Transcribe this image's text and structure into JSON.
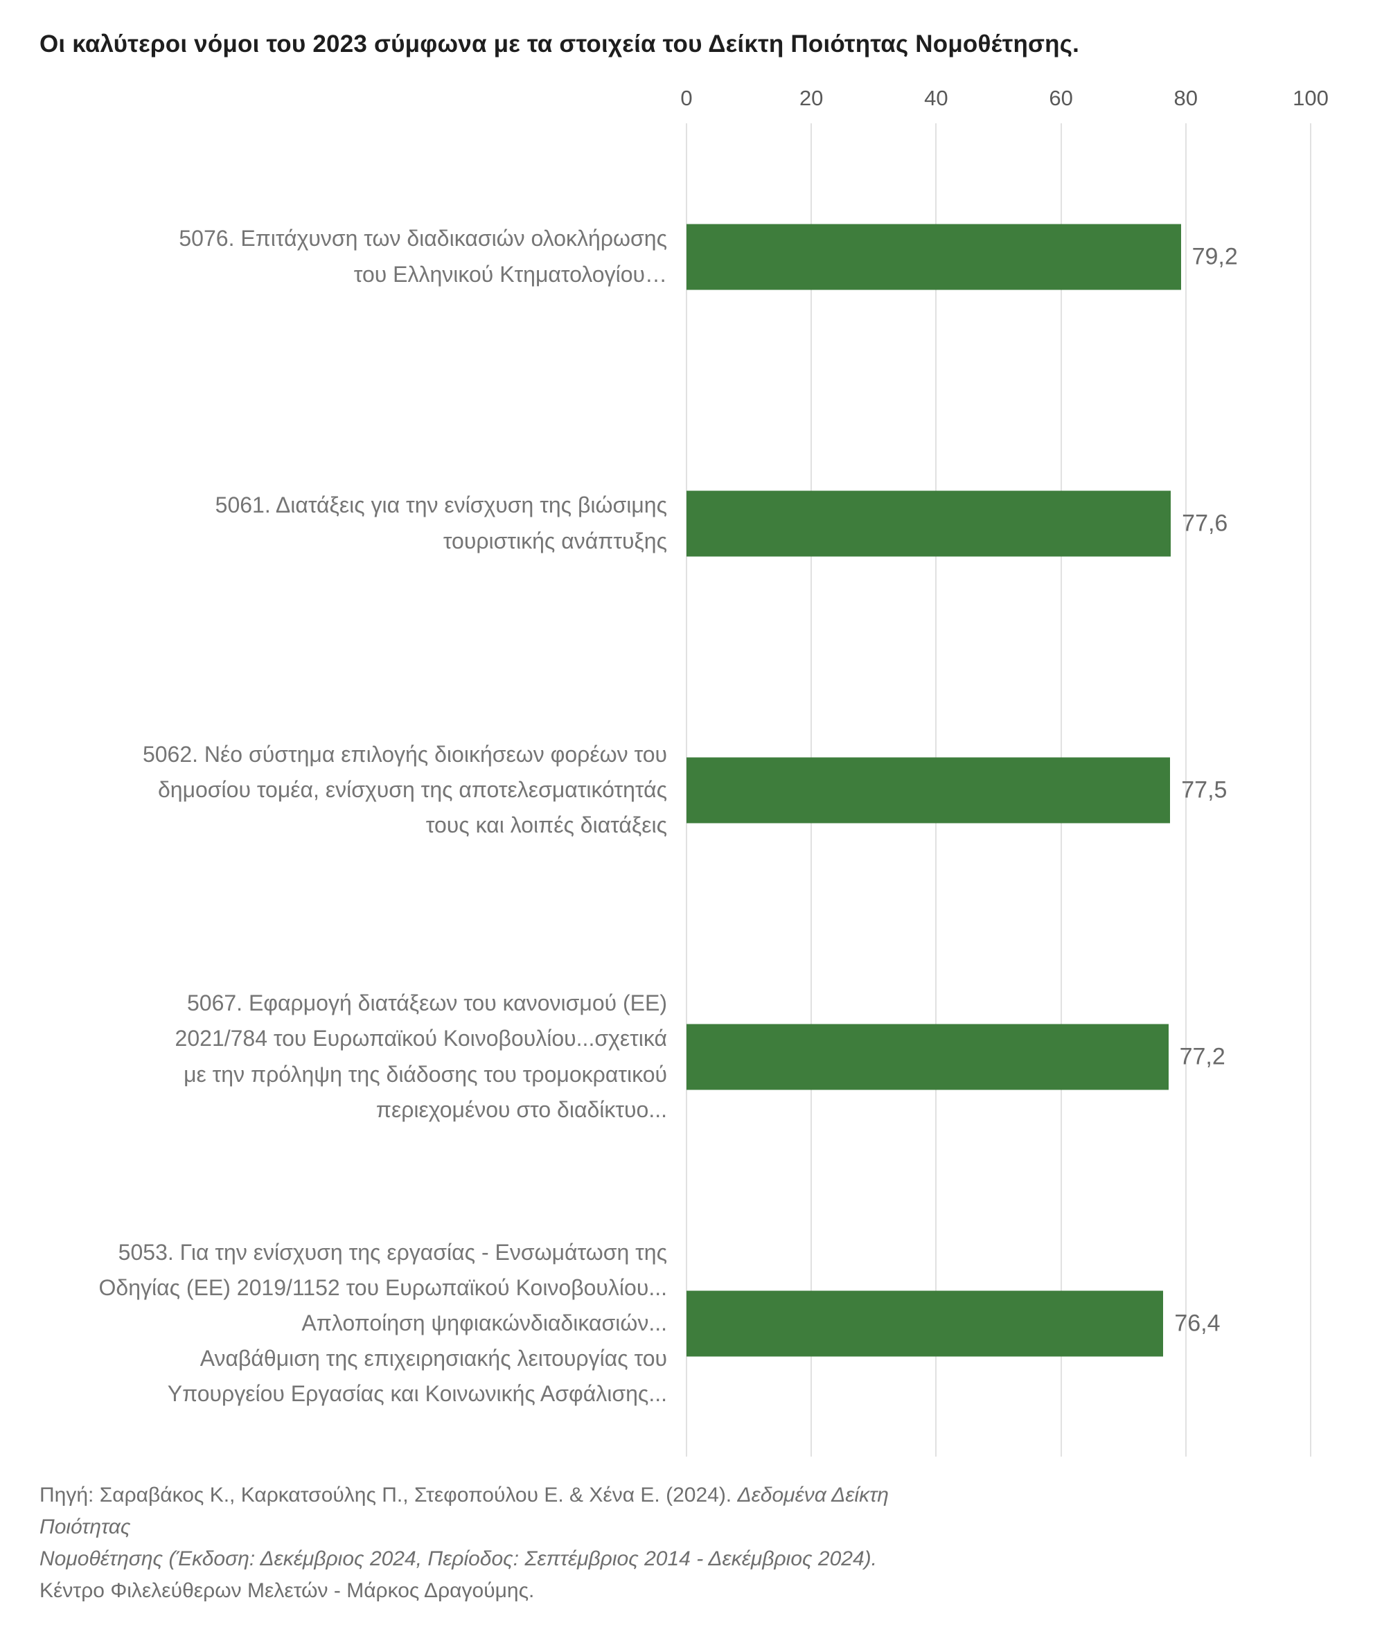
{
  "title": "Οι καλύτεροι νόμοι του 2023 σύμφωνα με τα στοιχεία του Δείκτη Ποιότητας Νομοθέτησης.",
  "chart_data": {
    "type": "bar",
    "orientation": "horizontal",
    "title": "Οι καλύτεροι νόμοι του 2023 σύμφωνα με τα στοιχεία του Δείκτη Ποιότητας Νομοθέτησης.",
    "categories": [
      "5076. Επιτάχυνση των διαδικασιών ολοκλήρωσης\nτου Ελληνικού Κτηματολογίου…",
      "5061. Διατάξεις για την ενίσχυση της βιώσιμης\nτουριστικής ανάπτυξης",
      "5062. Νέο σύστημα επιλογής διοικήσεων φορέων του\nδημοσίου τομέα, ενίσχυση της αποτελεσματικότητάς\nτους και λοιπές διατάξεις",
      "5067. Εφαρμογή διατάξεων του κανονισμού (ΕΕ)\n2021/784 του Ευρωπαϊκού Κοινοβουλίου...σχετικά\nμε την πρόληψη της διάδοσης του τρομοκρατικού\nπεριεχομένου στο διαδίκτυο...",
      "5053. Για την ενίσχυση της εργασίας - Ενσωμάτωση της\nΟδηγίας (ΕΕ) 2019/1152 του Ευρωπαϊκού Κοινοβουλίου...\nΑπλοποίηση ψηφιακώνδιαδικασιών...\nΑναβάθμιση της επιχειρησιακής λειτουργίας του\nΥπουργείου Εργασίας και Κοινωνικής Ασφάλισης..."
    ],
    "values": [
      79.2,
      77.6,
      77.5,
      77.2,
      76.4
    ],
    "value_labels": [
      "79,2",
      "77,6",
      "77,5",
      "77,2",
      "76,4"
    ],
    "xlabel": "",
    "ylabel": "",
    "xlim": [
      0,
      100
    ],
    "x_ticks": [
      0,
      20,
      40,
      60,
      80,
      100
    ],
    "grid": true,
    "axis_position": "top",
    "legend": "none",
    "bar_color": "#3E7D3C",
    "gridline_color": "#e1e1e1",
    "value_label_color": "#6a6a6a",
    "category_label_color": "#757575",
    "tick_label_color": "#595959"
  },
  "footer": {
    "source_prefix": "Πηγή: Σαραβάκος Κ., Καρκατσούλης Π., Στεφοπούλου Ε. & Χένα Ε. (2024). ",
    "source_italic_line1": "Δεδομένα Δείκτη Ποιότητας",
    "source_italic_line2": "Νομοθέτησης (Έκδοση: Δεκέμβριος 2024, Περίοδος: Σεπτέμβριος 2014 - Δεκέμβριος 2024).",
    "credit": "Κέντρο Φιλελεύθερων Μελετών - Μάρκος Δραγούμης."
  }
}
